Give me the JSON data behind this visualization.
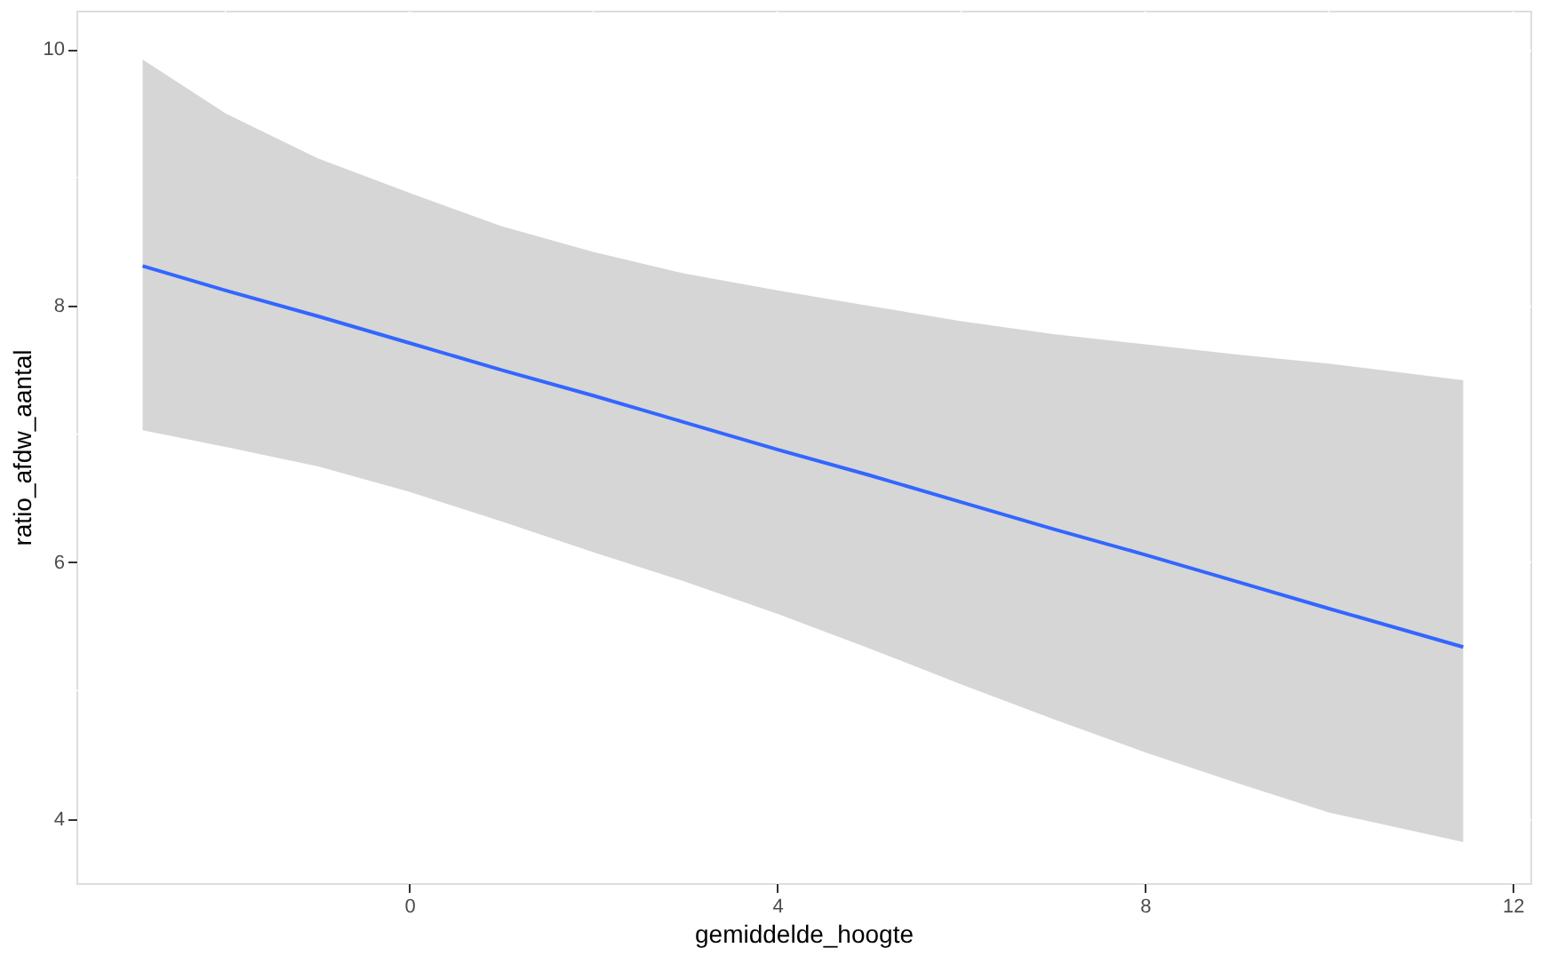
{
  "chart_data": {
    "type": "line",
    "xlabel": "gemiddelde_hoogte",
    "ylabel": "ratio_afdw_aantal",
    "xlim": [
      -3.62,
      12.19
    ],
    "ylim": [
      3.5,
      10.3
    ],
    "xticks": [
      0,
      4,
      8,
      12
    ],
    "yticks": [
      4,
      6,
      8,
      10
    ],
    "grid": true,
    "marker": "none",
    "line_style": "solid",
    "series": [
      {
        "color": "#3366ff",
        "x": [
          -2.9,
          -2,
          -1,
          0,
          1,
          2,
          3,
          4,
          5,
          6,
          7,
          8,
          9,
          10,
          11.46
        ],
        "values": [
          8.31,
          8.12,
          7.92,
          7.71,
          7.5,
          7.3,
          7.09,
          6.88,
          6.68,
          6.47,
          6.26,
          6.06,
          5.85,
          5.64,
          5.34
        ],
        "lower": [
          7.03,
          6.9,
          6.75,
          6.55,
          6.32,
          6.08,
          5.85,
          5.6,
          5.33,
          5.05,
          4.78,
          4.52,
          4.28,
          4.05,
          3.82
        ],
        "upper": [
          9.92,
          9.5,
          9.15,
          8.88,
          8.62,
          8.42,
          8.25,
          8.12,
          8.0,
          7.88,
          7.78,
          7.7,
          7.62,
          7.55,
          7.42
        ]
      }
    ]
  }
}
